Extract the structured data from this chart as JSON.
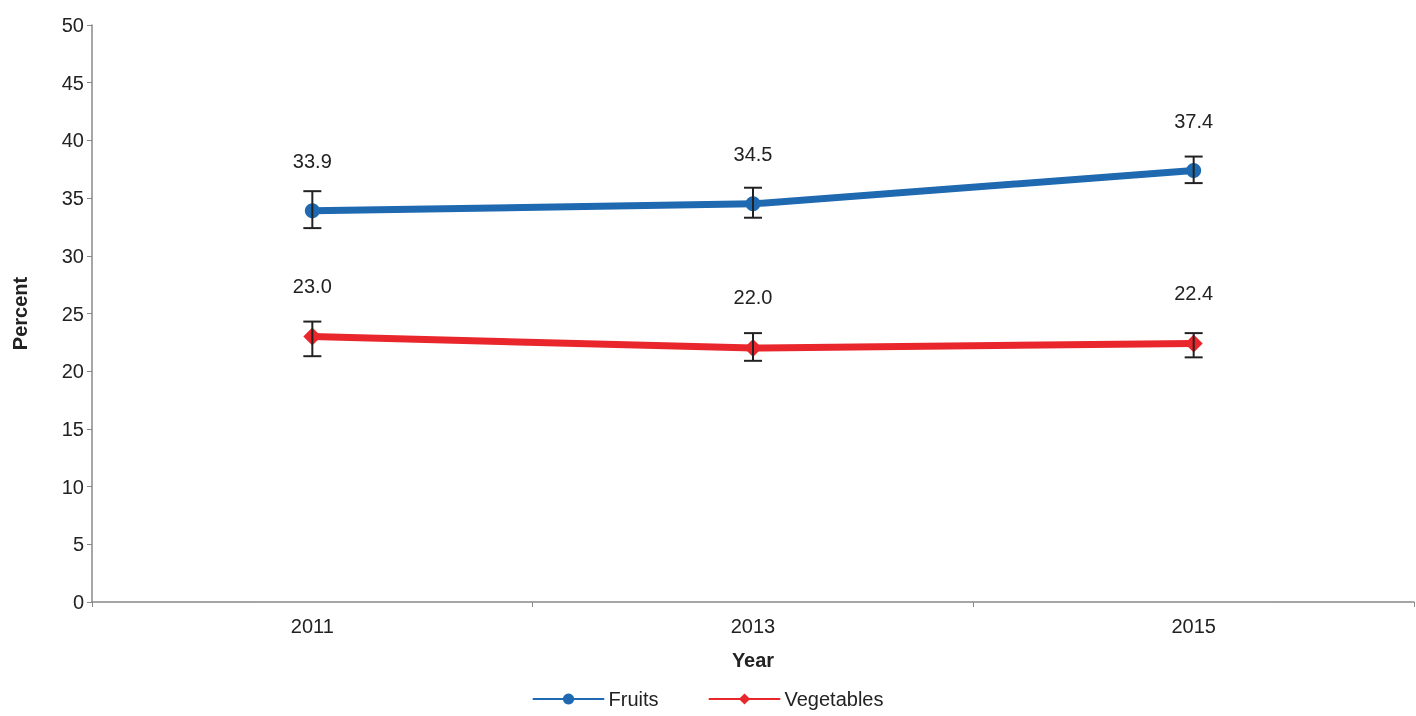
{
  "chart_data": {
    "type": "line",
    "xlabel": "Year",
    "ylabel": "Percent",
    "categories": [
      "2011",
      "2013",
      "2015"
    ],
    "series": [
      {
        "name": "Fruits",
        "color": "#1f69b1",
        "marker": "circle",
        "values": [
          33.9,
          34.5,
          37.4
        ],
        "value_labels": [
          "33.9",
          "34.5",
          "37.4"
        ],
        "errors": [
          [
            32.4,
            35.6
          ],
          [
            33.3,
            35.9
          ],
          [
            36.3,
            38.6
          ]
        ]
      },
      {
        "name": "Vegetables",
        "color": "#e9262b",
        "marker": "diamond",
        "values": [
          23.0,
          22.0,
          22.4
        ],
        "value_labels": [
          "23.0",
          "22.0",
          "22.4"
        ],
        "errors": [
          [
            21.3,
            24.3
          ],
          [
            20.9,
            23.3
          ],
          [
            21.2,
            23.3
          ]
        ]
      }
    ],
    "ylim": [
      0,
      50
    ],
    "yticks": [
      0,
      5,
      10,
      15,
      20,
      25,
      30,
      35,
      40,
      45,
      50
    ],
    "grid": false,
    "legend": "bottom"
  }
}
